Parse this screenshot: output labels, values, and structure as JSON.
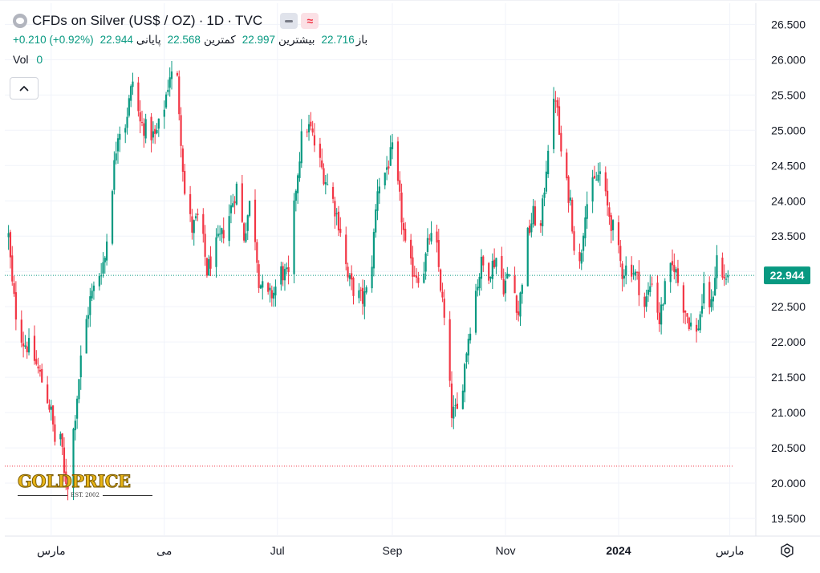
{
  "header": {
    "title": "CFDs on Silver (US$ / OZ)",
    "interval": "1D",
    "source": "TVC",
    "separator": "·"
  },
  "ohlc": {
    "open_label": "باز",
    "open": "22.716",
    "high_label": "بیشترین",
    "high": "22.997",
    "low_label": "کمترین",
    "low": "22.568",
    "close_label": "پایانی",
    "close": "22.944",
    "change": "+0.210 (+0.92%)"
  },
  "volume": {
    "label": "Vol",
    "value": "0"
  },
  "logo": {
    "text": "GOLDPRICE",
    "est": "EST. 2002"
  },
  "icons": {
    "symbol": "symbol-logo-icon",
    "hide": "hide-indicator-icon",
    "compare": "wave-compare-icon",
    "collapse": "chevron-up-icon",
    "settings": "settings-gear-icon"
  },
  "colors": {
    "up": "#089981",
    "down": "#f23645",
    "grid": "#f0f3fa",
    "axis_text": "#131722",
    "price_line": "#089981",
    "low_line": "#f23645"
  },
  "chart_data": {
    "type": "candlestick",
    "title": "CFDs on Silver (US$ / OZ)",
    "y_axis": {
      "position": "right",
      "ticks": [
        "19.500",
        "20.000",
        "20.500",
        "21.000",
        "21.500",
        "22.000",
        "22.500",
        "23.000",
        "23.500",
        "24.000",
        "24.500",
        "25.000",
        "25.500",
        "26.000",
        "26.500"
      ],
      "range": [
        19.25,
        26.8
      ]
    },
    "x_axis": {
      "ticks": [
        {
          "label": "مارس",
          "date": "2023-03-01"
        },
        {
          "label": "می",
          "date": "2023-05-01"
        },
        {
          "label": "Jul",
          "date": "2023-07-01"
        },
        {
          "label": "Sep",
          "date": "2023-09-01"
        },
        {
          "label": "Nov",
          "date": "2023-11-01"
        },
        {
          "label": "2024",
          "date": "2024-01-01",
          "bold": true
        },
        {
          "label": "مارس",
          "date": "2024-03-01"
        }
      ],
      "range": [
        "2023-02-04",
        "2024-03-15"
      ]
    },
    "last_price": {
      "value": 22.944,
      "label": "22.944"
    },
    "reference_low": 20.24,
    "grid": true,
    "path_points": [
      [
        "2023-02-06",
        23.5
      ],
      [
        "2023-02-08",
        22.8
      ],
      [
        "2023-02-10",
        22.4
      ],
      [
        "2023-02-14",
        22.0
      ],
      [
        "2023-02-18",
        21.9
      ],
      [
        "2023-02-22",
        21.6
      ],
      [
        "2023-02-26",
        21.3
      ],
      [
        "2023-03-01",
        21.0
      ],
      [
        "2023-03-03",
        20.6
      ],
      [
        "2023-03-06",
        20.7
      ],
      [
        "2023-03-08",
        20.1
      ],
      [
        "2023-03-10",
        20.0
      ],
      [
        "2023-03-14",
        21.0
      ],
      [
        "2023-03-18",
        22.0
      ],
      [
        "2023-03-22",
        22.6
      ],
      [
        "2023-03-26",
        22.9
      ],
      [
        "2023-03-30",
        23.2
      ],
      [
        "2023-04-02",
        24.0
      ],
      [
        "2023-04-06",
        25.0
      ],
      [
        "2023-04-10",
        25.1
      ],
      [
        "2023-04-14",
        25.7
      ],
      [
        "2023-04-18",
        25.1
      ],
      [
        "2023-04-22",
        25.0
      ],
      [
        "2023-04-26",
        24.9
      ],
      [
        "2023-04-30",
        25.2
      ],
      [
        "2023-05-04",
        25.8
      ],
      [
        "2023-05-08",
        25.7
      ],
      [
        "2023-05-12",
        24.1
      ],
      [
        "2023-05-16",
        23.6
      ],
      [
        "2023-05-20",
        23.8
      ],
      [
        "2023-05-24",
        23.0
      ],
      [
        "2023-05-28",
        23.3
      ],
      [
        "2023-06-01",
        23.5
      ],
      [
        "2023-06-05",
        23.8
      ],
      [
        "2023-06-09",
        24.2
      ],
      [
        "2023-06-13",
        23.5
      ],
      [
        "2023-06-17",
        24.1
      ],
      [
        "2023-06-21",
        22.9
      ],
      [
        "2023-06-25",
        22.6
      ],
      [
        "2023-06-29",
        22.7
      ],
      [
        "2023-07-03",
        23.0
      ],
      [
        "2023-07-07",
        22.9
      ],
      [
        "2023-07-11",
        24.2
      ],
      [
        "2023-07-15",
        25.1
      ],
      [
        "2023-07-19",
        25.0
      ],
      [
        "2023-07-23",
        24.6
      ],
      [
        "2023-07-27",
        24.3
      ],
      [
        "2023-07-31",
        24.0
      ],
      [
        "2023-08-04",
        23.6
      ],
      [
        "2023-08-08",
        22.9
      ],
      [
        "2023-08-12",
        22.7
      ],
      [
        "2023-08-16",
        22.6
      ],
      [
        "2023-08-20",
        22.8
      ],
      [
        "2023-08-24",
        24.2
      ],
      [
        "2023-08-28",
        24.4
      ],
      [
        "2023-09-01",
        24.7
      ],
      [
        "2023-09-05",
        24.0
      ],
      [
        "2023-09-09",
        23.1
      ],
      [
        "2023-09-13",
        23.0
      ],
      [
        "2023-09-17",
        22.9
      ],
      [
        "2023-09-21",
        23.5
      ],
      [
        "2023-09-25",
        23.3
      ],
      [
        "2023-09-29",
        22.3
      ],
      [
        "2023-10-03",
        21.0
      ],
      [
        "2023-10-07",
        21.0
      ],
      [
        "2023-10-11",
        21.9
      ],
      [
        "2023-10-15",
        22.6
      ],
      [
        "2023-10-19",
        23.1
      ],
      [
        "2023-10-23",
        23.0
      ],
      [
        "2023-10-27",
        23.2
      ],
      [
        "2023-10-31",
        22.8
      ],
      [
        "2023-11-04",
        23.0
      ],
      [
        "2023-11-08",
        22.4
      ],
      [
        "2023-11-12",
        23.4
      ],
      [
        "2023-11-16",
        23.8
      ],
      [
        "2023-11-20",
        23.6
      ],
      [
        "2023-11-24",
        24.8
      ],
      [
        "2023-11-28",
        25.5
      ],
      [
        "2023-12-02",
        24.4
      ],
      [
        "2023-12-06",
        24.0
      ],
      [
        "2023-12-10",
        22.8
      ],
      [
        "2023-12-14",
        23.9
      ],
      [
        "2023-12-18",
        24.2
      ],
      [
        "2023-12-22",
        24.4
      ],
      [
        "2023-12-26",
        23.9
      ],
      [
        "2023-12-30",
        23.5
      ],
      [
        "2024-01-03",
        23.0
      ],
      [
        "2024-01-07",
        23.1
      ],
      [
        "2024-01-11",
        22.9
      ],
      [
        "2024-01-15",
        22.5
      ],
      [
        "2024-01-19",
        22.9
      ],
      [
        "2024-01-23",
        22.3
      ],
      [
        "2024-01-27",
        22.9
      ],
      [
        "2024-01-31",
        23.1
      ],
      [
        "2024-02-04",
        22.6
      ],
      [
        "2024-02-08",
        22.3
      ],
      [
        "2024-02-12",
        22.1
      ],
      [
        "2024-02-16",
        22.7
      ],
      [
        "2024-02-20",
        22.5
      ],
      [
        "2024-02-23",
        23.2
      ],
      [
        "2024-02-26",
        22.9
      ],
      [
        "2024-02-29",
        22.944
      ]
    ]
  }
}
